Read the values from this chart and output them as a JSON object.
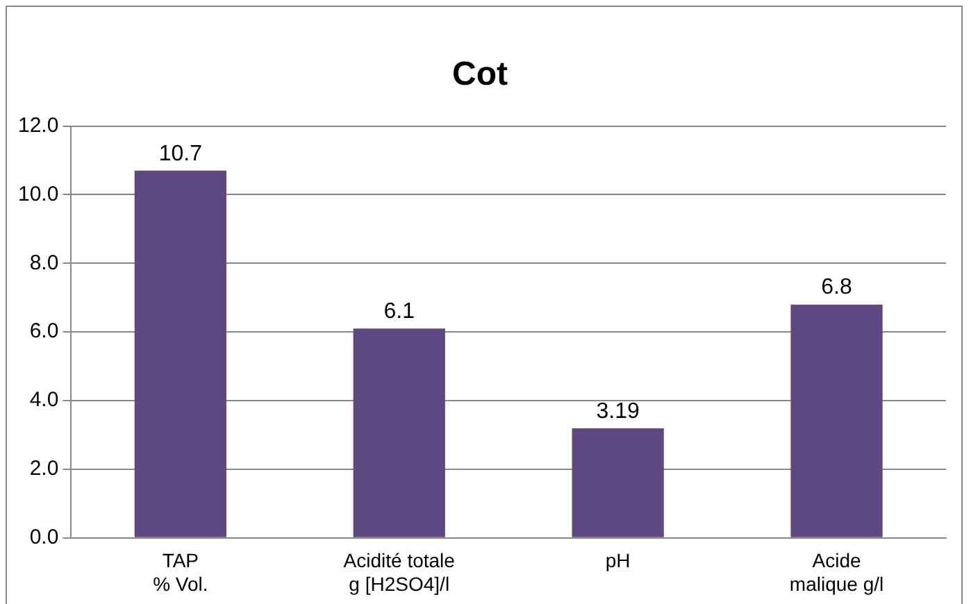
{
  "chart_data": {
    "type": "bar",
    "title": "Cot",
    "categories": [
      "TAP\n% Vol.",
      "Acidité totale\ng [H2SO4]/l",
      "pH",
      "Acide\nmalique g/l"
    ],
    "values": [
      10.7,
      6.1,
      3.19,
      6.8
    ],
    "color": "#5e4a80",
    "ylim": [
      0,
      12
    ],
    "yticks": [
      {
        "value": 0,
        "label": "0.0"
      },
      {
        "value": 2,
        "label": "2.0"
      },
      {
        "value": 4,
        "label": "4.0"
      },
      {
        "value": 6,
        "label": "6.0"
      },
      {
        "value": 8,
        "label": "8.0"
      },
      {
        "value": 10,
        "label": "10.0"
      },
      {
        "value": 12,
        "label": "12.0"
      }
    ],
    "grid": "y",
    "legend": false,
    "data_labels": true
  }
}
